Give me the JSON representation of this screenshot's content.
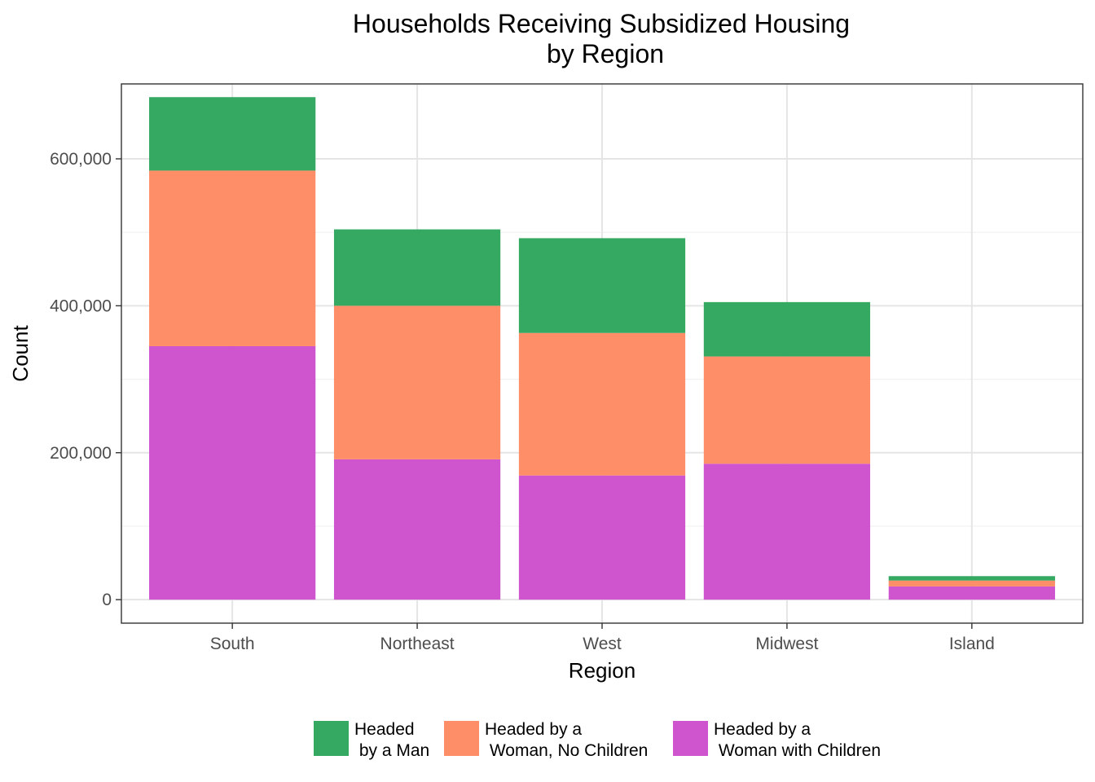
{
  "chart_data": {
    "type": "bar",
    "stacked": true,
    "title": [
      "Households Receiving Subsidized Housing",
      "by Region"
    ],
    "xlabel": "Region",
    "ylabel": "Count",
    "categories": [
      "South",
      "Northeast",
      "West",
      "Midwest",
      "Island"
    ],
    "ylim": [
      -32000,
      702000
    ],
    "yticks": [
      0,
      200000,
      400000,
      600000
    ],
    "ytick_labels": [
      "0",
      "200,000",
      "400,000",
      "600,000"
    ],
    "grid": true,
    "legend_position": "bottom",
    "series": [
      {
        "name": "Headed\n by a Man",
        "color": "#35a862",
        "values": [
          100000,
          104000,
          129000,
          74000,
          6000
        ]
      },
      {
        "name": "Headed by a\n Woman, No Children",
        "color": "#fe8e67",
        "values": [
          239000,
          209000,
          194000,
          146000,
          8000
        ]
      },
      {
        "name": "Headed by a\n Woman with Children",
        "color": "#cf55cf",
        "values": [
          345000,
          191000,
          169000,
          185000,
          18000
        ]
      }
    ]
  }
}
